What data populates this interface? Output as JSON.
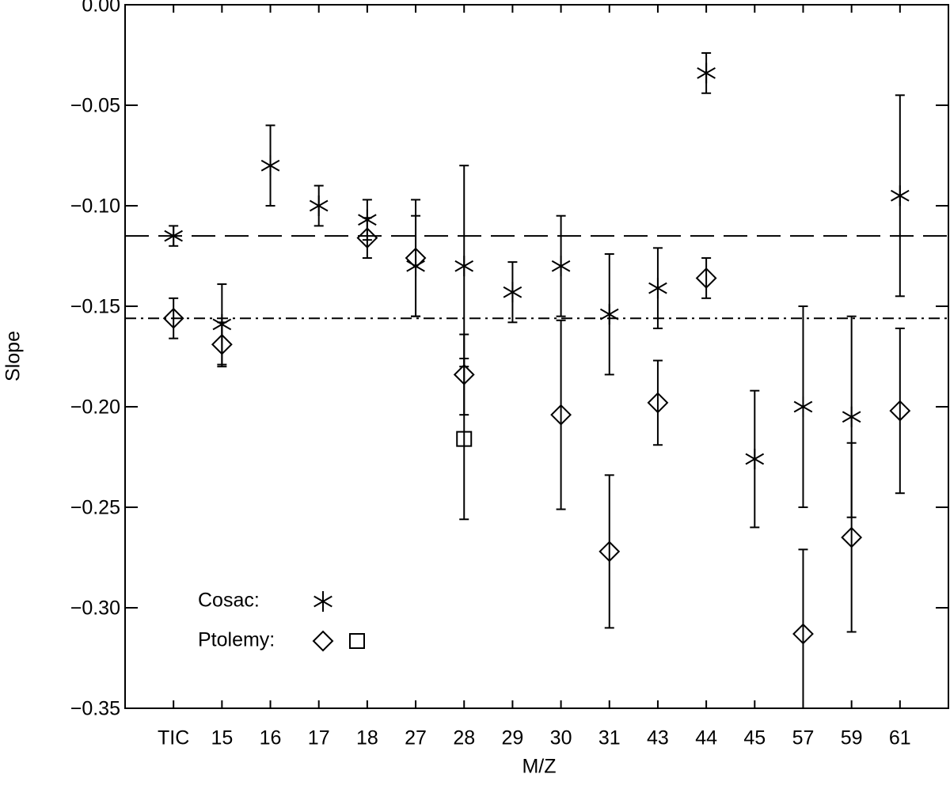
{
  "chart_data": {
    "type": "errorbar_scatter",
    "xlabel": "M/Z",
    "ylabel": "Slope",
    "categories": [
      "TIC",
      "15",
      "16",
      "17",
      "18",
      "27",
      "28",
      "29",
      "30",
      "31",
      "43",
      "44",
      "45",
      "57",
      "59",
      "61"
    ],
    "ylim": [
      -0.35,
      0
    ],
    "yticks": [
      {
        "value": 0,
        "label": "0.00"
      },
      {
        "value": -0.05,
        "label": "−0.05"
      },
      {
        "value": -0.1,
        "label": "−0.10"
      },
      {
        "value": -0.15,
        "label": "−0.15"
      },
      {
        "value": -0.2,
        "label": "−0.20"
      },
      {
        "value": -0.25,
        "label": "−0.25"
      },
      {
        "value": -0.3,
        "label": "−0.30"
      },
      {
        "value": -0.35,
        "label": "−0.35"
      }
    ],
    "color": "#000000",
    "series": [
      {
        "name": "Cosac:",
        "marker": "asterisk",
        "values": [
          -0.115,
          -0.159,
          -0.08,
          -0.1,
          -0.107,
          -0.13,
          -0.13,
          -0.143,
          -0.13,
          -0.154,
          -0.141,
          -0.034,
          -0.226,
          -0.2,
          -0.205,
          -0.095
        ],
        "errors": [
          0.005,
          0.02,
          0.02,
          0.01,
          0.01,
          0.025,
          0.05,
          0.015,
          0.025,
          0.03,
          0.02,
          0.01,
          0.034,
          0.05,
          0.05,
          0.05
        ]
      },
      {
        "name": "Ptolemy:",
        "marker": "diamond",
        "values": [
          -0.156,
          -0.169,
          null,
          null,
          -0.116,
          -0.126,
          -0.184,
          null,
          -0.204,
          -0.272,
          -0.198,
          -0.136,
          null,
          -0.313,
          -0.265,
          -0.202
        ],
        "errors": [
          0.01,
          0.011,
          null,
          null,
          0.01,
          0.029,
          0.02,
          null,
          0.047,
          0.038,
          0.021,
          0.01,
          null,
          0.042,
          0.047,
          0.041
        ]
      },
      {
        "marker": "square",
        "values": [
          null,
          null,
          null,
          null,
          null,
          null,
          -0.216,
          null,
          null,
          null,
          null,
          null,
          null,
          null,
          null,
          null
        ],
        "errors": [
          null,
          null,
          null,
          null,
          null,
          null,
          0.04,
          null,
          null,
          null,
          null,
          null,
          null,
          null,
          null,
          null
        ]
      }
    ],
    "reference_lines": [
      {
        "value": -0.115,
        "style": "dashed"
      },
      {
        "value": -0.156,
        "style": "dashdot"
      }
    ]
  }
}
